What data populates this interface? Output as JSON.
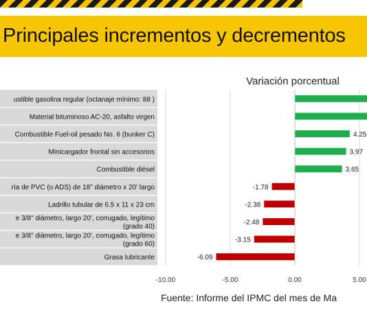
{
  "header": {
    "title": "Principales incrementos y decrementos"
  },
  "footer": {
    "source": "Fuente: Informe del IPMC del mes de Ma"
  },
  "colors": {
    "positive": "#1fae4e",
    "negative": "#c00000",
    "title_band": "#f7c600",
    "label_band": "#d9d9d9"
  },
  "chart_data": {
    "type": "bar",
    "orientation": "horizontal",
    "title": "Variación porcentual",
    "categories": [
      [
        "ustible gasolina regular (octanaje mínimo: 88 )"
      ],
      [
        "Material bituminoso AC-20, asfalto virgen"
      ],
      [
        "Combustible Fuel-oil pesado No. 6 (bunker C)"
      ],
      [
        "Minicargador frontal sin accesorios"
      ],
      [
        "Combustible diésel"
      ],
      [
        "ría de PVC (o ADS) de 18\" diámetro x 20' largo"
      ],
      [
        "Ladrillo tubular de 6.5 x 11 x 23 cm"
      ],
      [
        "e 3/8\" diámetro, largo 20', corrugado, legítimo",
        "(grado 40)"
      ],
      [
        "e 3/8\" diámetro, largo 20', corrugado, legítimo",
        "(grado 60)"
      ],
      [
        "Grasa lubricante"
      ]
    ],
    "values": [
      5.9,
      5.9,
      4.25,
      3.97,
      3.65,
      -1.78,
      -2.38,
      -2.48,
      -3.15,
      -6.09
    ],
    "value_labels": [
      null,
      null,
      "4.25",
      "3.97",
      "3.65",
      "-1.78",
      "-2.38",
      "-2.48",
      "-3.15",
      "-6.09"
    ],
    "xticks": [
      "-10.00",
      "-5.00",
      "0.00",
      "5.00"
    ],
    "xtick_values": [
      -10,
      -5,
      0,
      5
    ],
    "xlim": [
      -10,
      5.9
    ],
    "grid": "vertical"
  }
}
